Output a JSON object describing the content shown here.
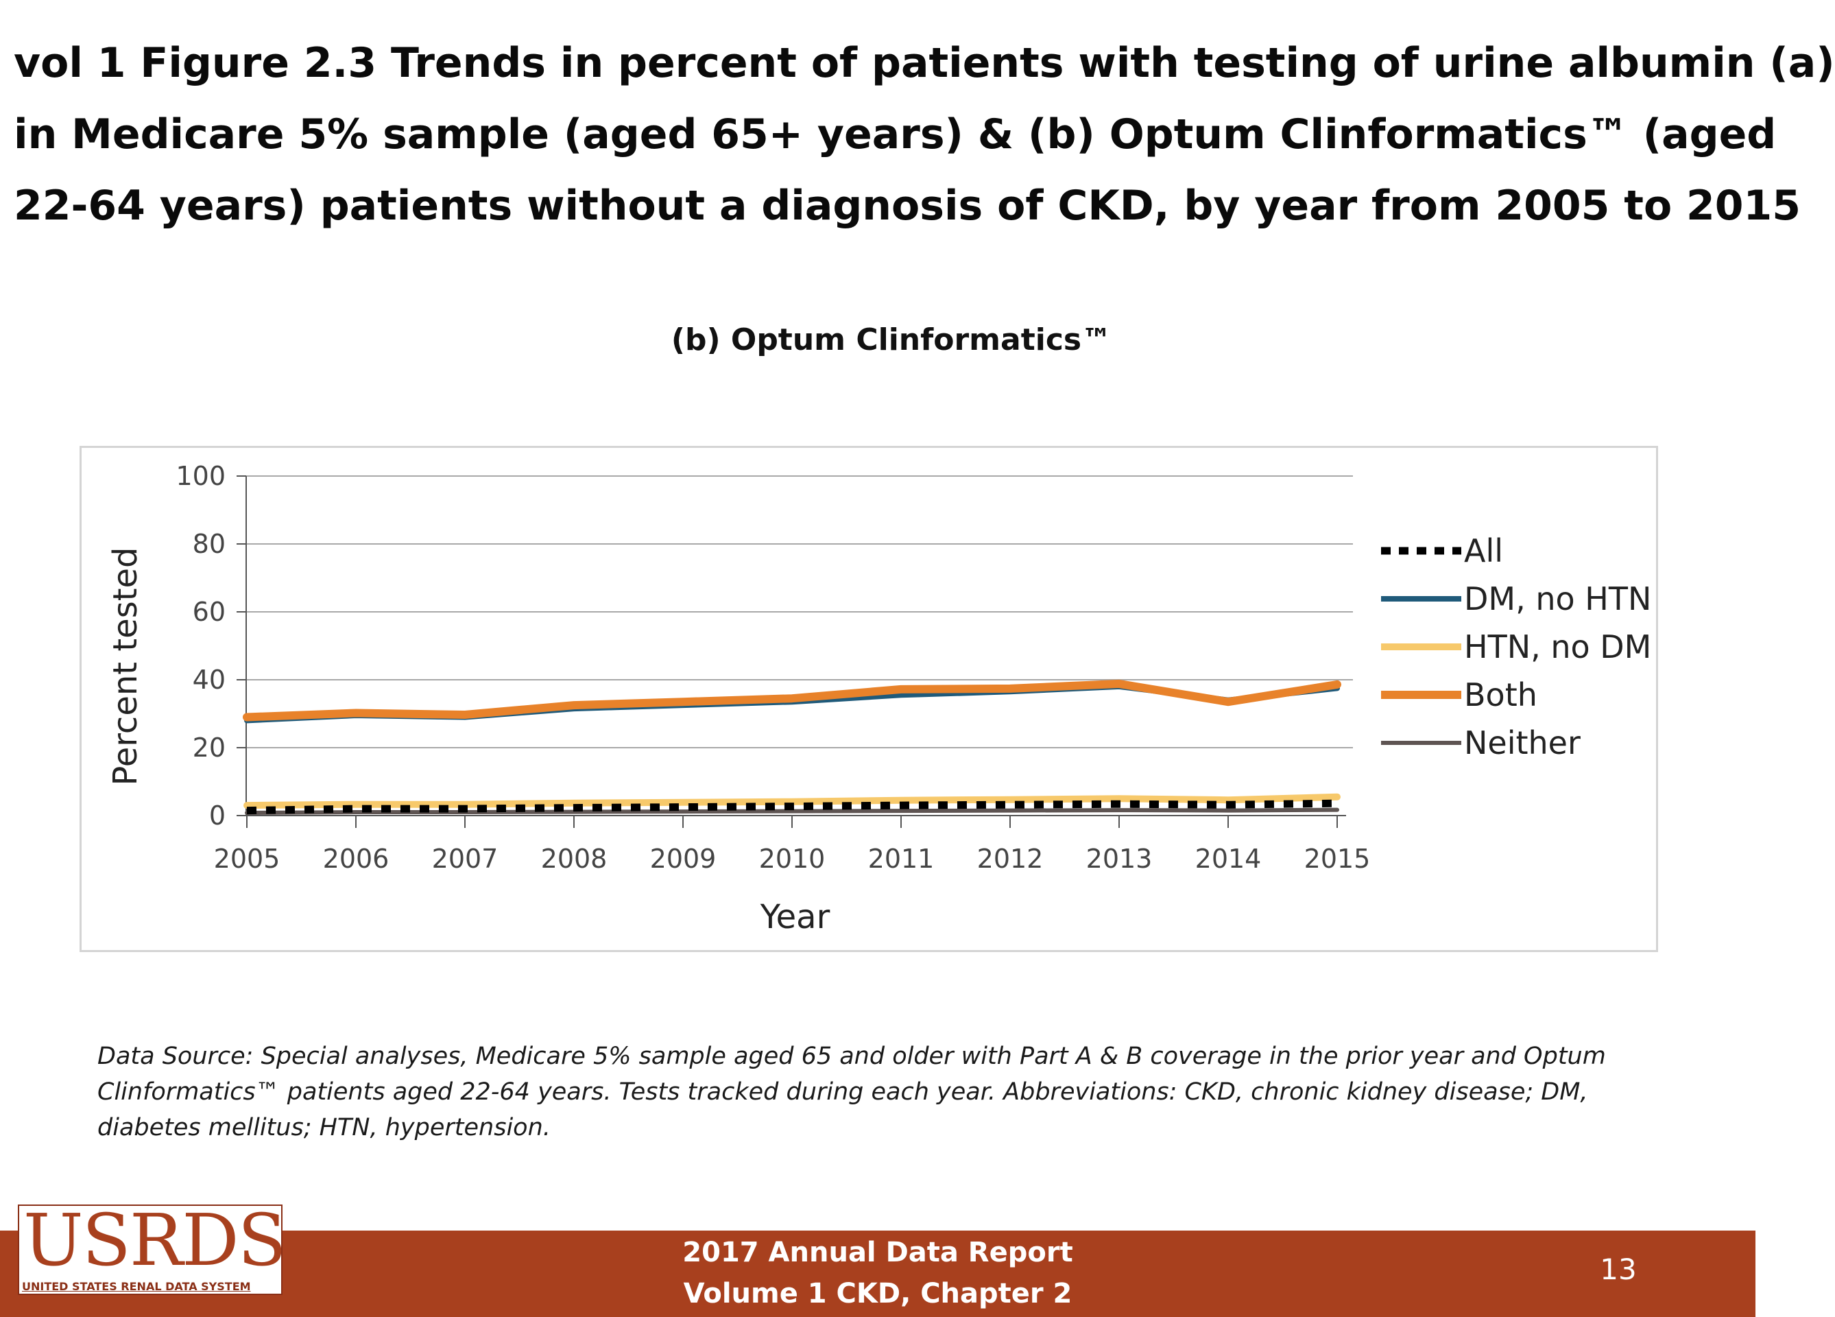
{
  "slide": {
    "title_lines": [
      "vol 1 Figure 2.3 Trends in percent of patients with testing of urine albumin (a)",
      "in Medicare 5% sample (aged 65+ years) & (b) Optum Clinformatics™ (aged",
      "22-64 years) patients without a diagnosis of CKD, by year from 2005 to 2015"
    ],
    "source_lines": [
      "Data Source: Special analyses, Medicare 5% sample aged 65 and older with Part A & B coverage in the prior year and Optum",
      "Clinformatics™ patients aged 22-64 years. Tests tracked during each year. Abbreviations: CKD, chronic kidney disease; DM,",
      "diabetes mellitus; HTN, hypertension."
    ],
    "logo": {
      "main": "USRDS",
      "sub": "UNITED STATES RENAL DATA SYSTEM"
    },
    "footer": {
      "line1": "2017 Annual Data Report",
      "line2": "Volume 1 CKD, Chapter 2"
    },
    "page_number": "13",
    "colors": {
      "footer_bar": "#a8401e"
    }
  },
  "chart_data": {
    "type": "line",
    "title": "(b) Optum Clinformatics™",
    "xlabel": "Year",
    "ylabel": "Percent tested",
    "x": [
      2005,
      2006,
      2007,
      2008,
      2009,
      2010,
      2011,
      2012,
      2013,
      2014,
      2015
    ],
    "ylim": [
      0,
      100
    ],
    "yticks": [
      0,
      20,
      40,
      60,
      80,
      100
    ],
    "grid": true,
    "legend_position": "right",
    "series": [
      {
        "name": "All",
        "color": "#000000",
        "style": "dashed",
        "values": [
          1.5,
          2.0,
          2.0,
          2.3,
          2.5,
          2.7,
          3.0,
          3.2,
          3.4,
          3.2,
          3.6
        ]
      },
      {
        "name": "DM, no HTN",
        "color": "#1f5a7a",
        "style": "solid",
        "values": [
          28,
          29.5,
          29,
          31.5,
          32.5,
          33.5,
          35.5,
          36.5,
          38,
          34,
          37.5
        ]
      },
      {
        "name": "HTN, no DM",
        "color": "#f7c96b",
        "style": "solid",
        "values": [
          3.0,
          3.3,
          3.3,
          3.7,
          3.9,
          4.1,
          4.5,
          4.7,
          5.0,
          4.6,
          5.5
        ]
      },
      {
        "name": "Both",
        "color": "#e8822a",
        "style": "solid",
        "values": [
          29,
          30.2,
          29.7,
          32.5,
          33.5,
          34.5,
          37.2,
          37.4,
          38.8,
          33.5,
          38.6
        ]
      },
      {
        "name": "Neither",
        "color": "#5e5452",
        "style": "solid",
        "values": [
          0.8,
          1.0,
          1.0,
          1.1,
          1.2,
          1.3,
          1.4,
          1.5,
          1.6,
          1.5,
          1.7
        ]
      }
    ]
  }
}
